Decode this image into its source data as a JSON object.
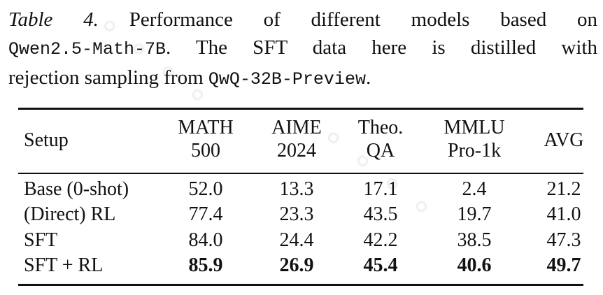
{
  "caption": {
    "label": "Table 4.",
    "text1": "Performance of different models based on",
    "model1": "Qwen2.5-Math-7B",
    "text2": ". The SFT data here is distilled with",
    "text3": "rejection sampling from",
    "model2": "QwQ-32B-Preview",
    "text4": "."
  },
  "table": {
    "headers": [
      {
        "line1": "Setup",
        "line2": ""
      },
      {
        "line1": "MATH",
        "line2": "500"
      },
      {
        "line1": "AIME",
        "line2": "2024"
      },
      {
        "line1": "Theo.",
        "line2": "QA"
      },
      {
        "line1": "MMLU",
        "line2": "Pro-1k"
      },
      {
        "line1": "AVG",
        "line2": ""
      }
    ],
    "rows": [
      {
        "setup": "Base (0-shot)",
        "math500": "52.0",
        "aime2024": "13.3",
        "theoqa": "17.1",
        "mmlu": "2.4",
        "avg": "21.2"
      },
      {
        "setup": "(Direct) RL",
        "math500": "77.4",
        "aime2024": "23.3",
        "theoqa": "43.5",
        "mmlu": "19.7",
        "avg": "41.0"
      },
      {
        "setup": "SFT",
        "math500": "84.0",
        "aime2024": "24.4",
        "theoqa": "42.2",
        "mmlu": "38.5",
        "avg": "47.3"
      },
      {
        "setup": "SFT + RL",
        "math500": "85.9",
        "aime2024": "26.9",
        "theoqa": "45.4",
        "mmlu": "40.6",
        "avg": "49.7"
      }
    ]
  }
}
